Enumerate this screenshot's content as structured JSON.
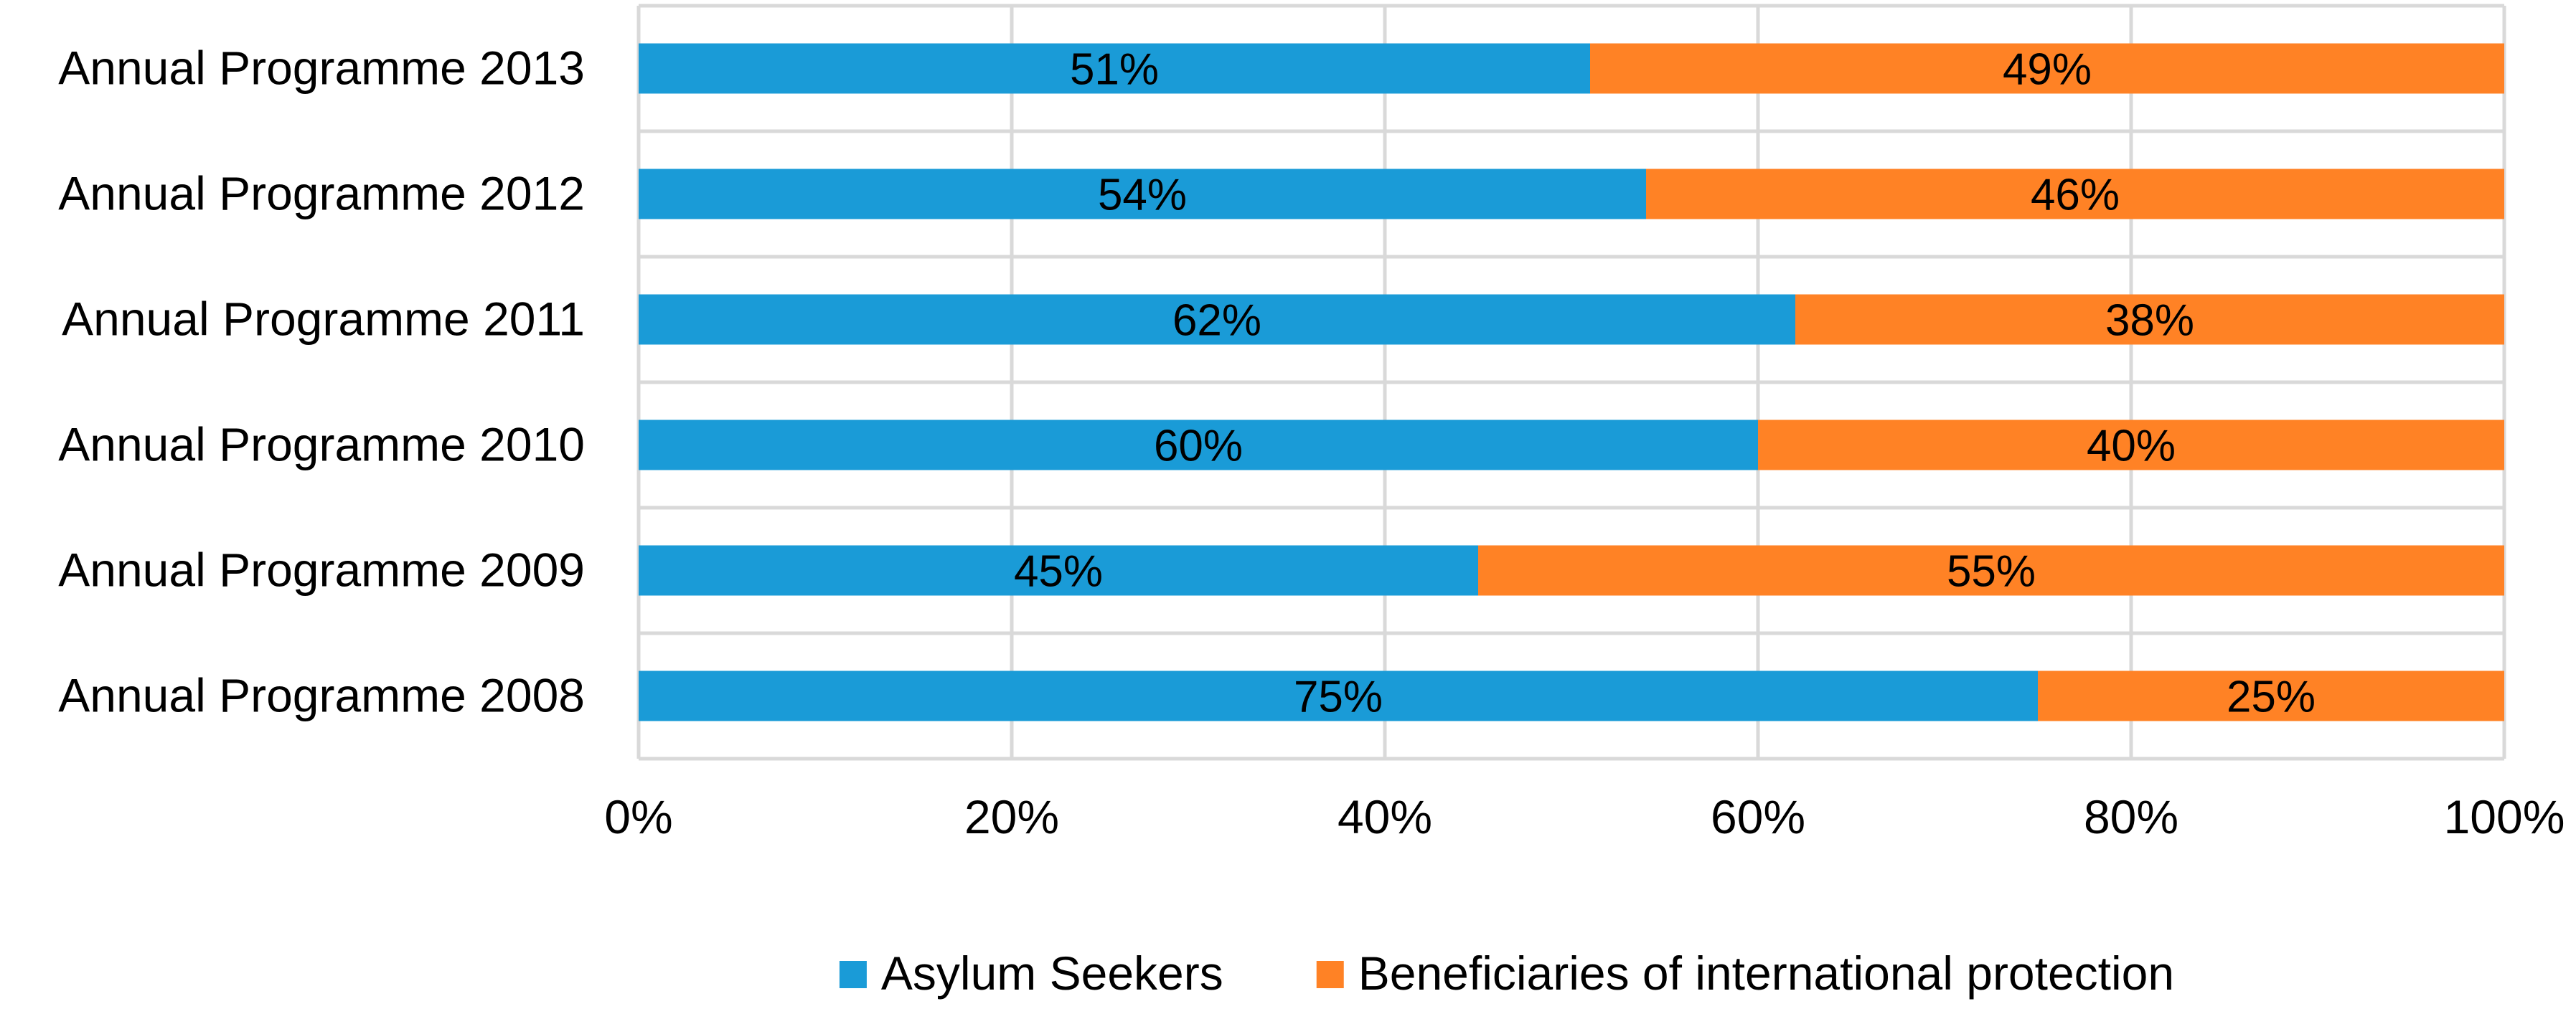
{
  "chart_data": {
    "type": "bar",
    "orientation": "horizontal",
    "stacked": "percent",
    "title": "",
    "xlabel": "",
    "ylabel": "",
    "xlim": [
      0,
      100
    ],
    "x_ticks": [
      "0%",
      "20%",
      "40%",
      "60%",
      "80%",
      "100%"
    ],
    "grid": true,
    "legend_position": "bottom",
    "categories": [
      "Annual Programme 2013",
      "Annual Programme 2012",
      "Annual Programme 2011",
      "Annual Programme 2010",
      "Annual Programme 2009",
      "Annual Programme 2008"
    ],
    "series": [
      {
        "name": "Asylum Seekers",
        "color": "#1a9bd7",
        "values": [
          51,
          54,
          62,
          60,
          45,
          75
        ],
        "labels": [
          "51%",
          "54%",
          "62%",
          "60%",
          "45%",
          "75%"
        ]
      },
      {
        "name": "Beneficiaries of international protection",
        "color": "#ff8225",
        "values": [
          49,
          46,
          38,
          40,
          55,
          25
        ],
        "labels": [
          "49%",
          "46%",
          "38%",
          "40%",
          "55%",
          "25%"
        ]
      }
    ]
  }
}
